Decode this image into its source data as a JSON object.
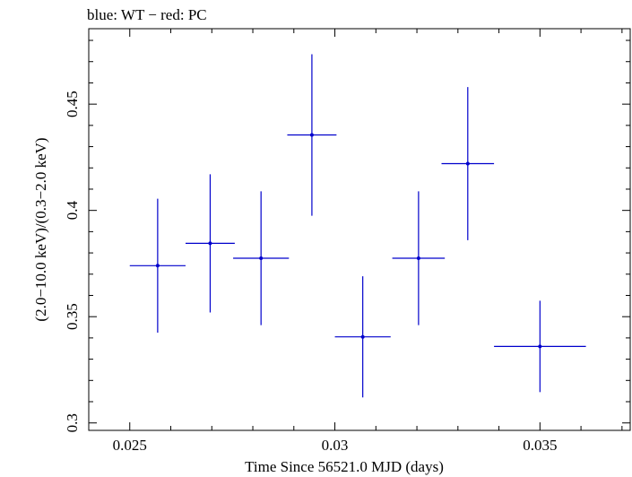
{
  "chart_data": {
    "type": "scatter",
    "title": "blue: WT − red: PC",
    "xlabel": "Time Since 56521.0 MJD (days)",
    "ylabel": "(2.0−10.0 keV)/(0.3−2.0 keV)",
    "xlim": [
      0.024,
      0.0372
    ],
    "ylim": [
      0.2965,
      0.4855
    ],
    "x_ticks": [
      {
        "value": 0.025,
        "label": "0.025"
      },
      {
        "value": 0.03,
        "label": "0.03"
      },
      {
        "value": 0.035,
        "label": "0.035"
      }
    ],
    "y_ticks": [
      {
        "value": 0.3,
        "label": "0.3"
      },
      {
        "value": 0.35,
        "label": "0.35"
      },
      {
        "value": 0.4,
        "label": "0.4"
      },
      {
        "value": 0.45,
        "label": "0.45"
      }
    ],
    "grid": false,
    "series": [
      {
        "color": "#0000cc",
        "points": [
          {
            "x": 0.02568,
            "xerr": 0.00068,
            "y": 0.374,
            "yerr": 0.0315
          },
          {
            "x": 0.02696,
            "xerr": 0.0006,
            "y": 0.3845,
            "yerr": 0.0325
          },
          {
            "x": 0.0282,
            "xerr": 0.00068,
            "y": 0.3775,
            "yerr": 0.0315
          },
          {
            "x": 0.02944,
            "xerr": 0.0006,
            "y": 0.4355,
            "yerr": 0.038
          },
          {
            "x": 0.03068,
            "xerr": 0.00068,
            "y": 0.3405,
            "yerr": 0.0285
          },
          {
            "x": 0.03204,
            "xerr": 0.00064,
            "y": 0.3775,
            "yerr": 0.0315
          },
          {
            "x": 0.03324,
            "xerr": 0.00064,
            "y": 0.422,
            "yerr": 0.036
          },
          {
            "x": 0.035,
            "xerr": 0.00112,
            "y": 0.336,
            "yerr": 0.0215
          }
        ]
      }
    ]
  }
}
